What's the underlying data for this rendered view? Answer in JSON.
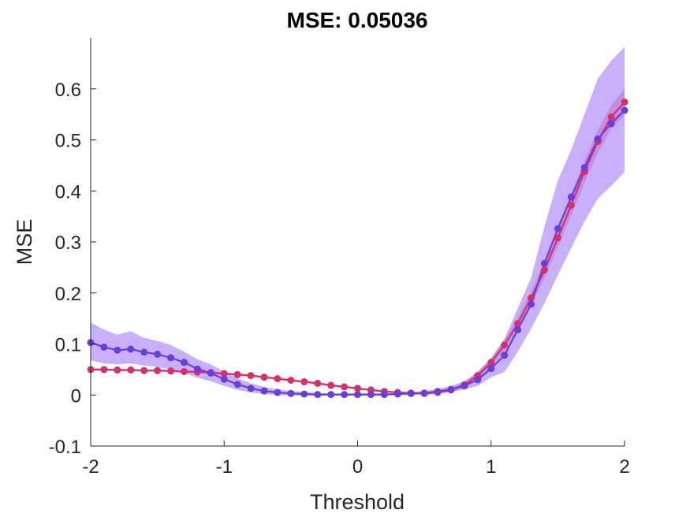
{
  "chart_data": {
    "type": "line",
    "title": "MSE: 0.05036",
    "xlabel": "Threshold",
    "ylabel": "MSE",
    "xlim": [
      -2,
      2
    ],
    "ylim": [
      -0.1,
      0.7
    ],
    "xticks": [
      -2,
      -1,
      0,
      1,
      2
    ],
    "xtick_labels": [
      "-2",
      "-1",
      "0",
      "1",
      "2"
    ],
    "yticks": [
      -0.1,
      0,
      0.1,
      0.2,
      0.3,
      0.4,
      0.5,
      0.6
    ],
    "ytick_labels": [
      "-0.1",
      "0",
      "0.1",
      "0.2",
      "0.3",
      "0.4",
      "0.5",
      "0.6"
    ],
    "grid": false,
    "x": [
      -2.0,
      -1.9,
      -1.8,
      -1.7,
      -1.6,
      -1.5,
      -1.4,
      -1.3,
      -1.2,
      -1.1,
      -1.0,
      -0.9,
      -0.8,
      -0.7,
      -0.6,
      -0.5,
      -0.4,
      -0.3,
      -0.2,
      -0.1,
      0.0,
      0.1,
      0.2,
      0.3,
      0.4,
      0.5,
      0.6,
      0.7,
      0.8,
      0.9,
      1.0,
      1.1,
      1.2,
      1.3,
      1.4,
      1.5,
      1.6,
      1.7,
      1.8,
      1.9,
      2.0
    ],
    "series": [
      {
        "color": "#d62f6a",
        "band_color": "#d62f6a",
        "band_opacity": 0.35,
        "values": [
          0.05,
          0.05,
          0.049,
          0.049,
          0.048,
          0.048,
          0.047,
          0.046,
          0.045,
          0.044,
          0.042,
          0.04,
          0.038,
          0.035,
          0.032,
          0.029,
          0.026,
          0.023,
          0.019,
          0.016,
          0.013,
          0.01,
          0.007,
          0.005,
          0.004,
          0.003,
          0.005,
          0.01,
          0.02,
          0.038,
          0.064,
          0.098,
          0.14,
          0.19,
          0.245,
          0.308,
          0.372,
          0.438,
          0.497,
          0.545,
          0.574
        ],
        "lower": [
          0.048,
          0.048,
          0.047,
          0.047,
          0.046,
          0.046,
          0.045,
          0.044,
          0.043,
          0.042,
          0.04,
          0.038,
          0.036,
          0.033,
          0.03,
          0.027,
          0.024,
          0.021,
          0.017,
          0.014,
          0.011,
          0.008,
          0.005,
          0.003,
          0.002,
          0.0,
          0.002,
          0.006,
          0.015,
          0.03,
          0.055,
          0.087,
          0.128,
          0.176,
          0.229,
          0.29,
          0.352,
          0.416,
          0.475,
          0.522,
          0.548
        ],
        "upper": [
          0.052,
          0.052,
          0.051,
          0.051,
          0.05,
          0.05,
          0.049,
          0.048,
          0.047,
          0.046,
          0.044,
          0.042,
          0.04,
          0.037,
          0.034,
          0.031,
          0.028,
          0.025,
          0.021,
          0.018,
          0.015,
          0.012,
          0.009,
          0.007,
          0.006,
          0.006,
          0.009,
          0.014,
          0.025,
          0.046,
          0.073,
          0.109,
          0.152,
          0.204,
          0.261,
          0.326,
          0.392,
          0.46,
          0.519,
          0.568,
          0.6
        ]
      },
      {
        "color": "#6a3fd8",
        "band_color": "#9a6ef5",
        "band_opacity": 0.55,
        "values": [
          0.103,
          0.094,
          0.088,
          0.09,
          0.084,
          0.08,
          0.073,
          0.064,
          0.051,
          0.043,
          0.031,
          0.021,
          0.013,
          0.008,
          0.005,
          0.003,
          0.002,
          0.001,
          0.001,
          0.001,
          0.001,
          0.001,
          0.001,
          0.002,
          0.003,
          0.004,
          0.007,
          0.011,
          0.018,
          0.03,
          0.052,
          0.078,
          0.128,
          0.178,
          0.258,
          0.326,
          0.388,
          0.446,
          0.502,
          0.532,
          0.558
        ],
        "lower": [
          0.068,
          0.062,
          0.06,
          0.062,
          0.058,
          0.055,
          0.05,
          0.043,
          0.034,
          0.027,
          0.018,
          0.01,
          0.005,
          0.002,
          0.0,
          -0.001,
          -0.001,
          -0.001,
          -0.001,
          -0.001,
          -0.001,
          -0.001,
          -0.001,
          0.0,
          0.0,
          0.001,
          0.003,
          0.006,
          0.011,
          0.018,
          0.035,
          0.045,
          0.085,
          0.13,
          0.18,
          0.235,
          0.288,
          0.34,
          0.385,
          0.41,
          0.437
        ],
        "upper": [
          0.142,
          0.128,
          0.118,
          0.125,
          0.112,
          0.106,
          0.098,
          0.085,
          0.07,
          0.06,
          0.046,
          0.033,
          0.023,
          0.016,
          0.011,
          0.008,
          0.006,
          0.004,
          0.003,
          0.003,
          0.003,
          0.003,
          0.003,
          0.004,
          0.006,
          0.008,
          0.012,
          0.018,
          0.027,
          0.045,
          0.072,
          0.11,
          0.17,
          0.23,
          0.33,
          0.42,
          0.48,
          0.55,
          0.62,
          0.655,
          0.682
        ]
      }
    ]
  }
}
